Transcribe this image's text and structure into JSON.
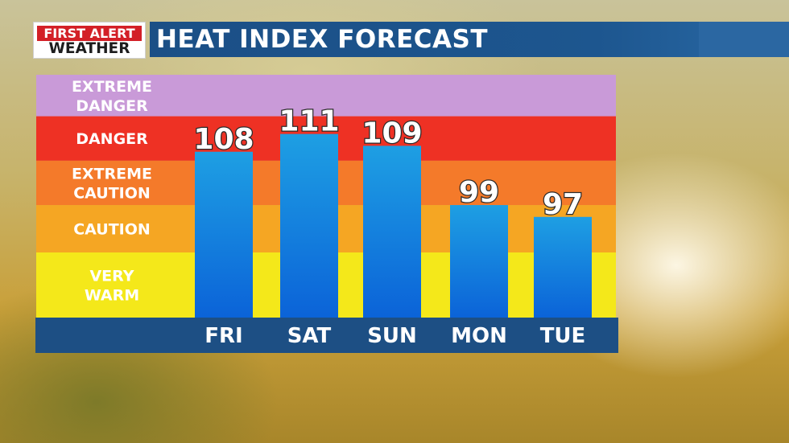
{
  "logo": {
    "line1": "FIRST ALERT",
    "line2": "WEATHER"
  },
  "header": {
    "title": "HEAT INDEX FORECAST"
  },
  "colors": {
    "header_blue": "#1b4f86",
    "axis_bar": "#1d4f84",
    "bar_top": "#1e9fe3",
    "bar_bottom": "#0b63d8"
  },
  "chart_data": {
    "type": "bar",
    "title": "HEAT INDEX FORECAST",
    "categories": [
      "FRI",
      "SAT",
      "SUN",
      "MON",
      "TUE"
    ],
    "values": [
      108,
      111,
      109,
      99,
      97
    ],
    "ylim": [
      80,
      120
    ],
    "bands": [
      {
        "label_lines": [
          "VERY",
          "WARM"
        ],
        "from": 80,
        "to": 91,
        "color": "#f4e81a"
      },
      {
        "label_lines": [
          "CAUTION"
        ],
        "from": 91,
        "to": 99,
        "color": "#f5a623"
      },
      {
        "label_lines": [
          "EXTREME",
          "CAUTION"
        ],
        "from": 99,
        "to": 106.5,
        "color": "#f47a2a"
      },
      {
        "label_lines": [
          "DANGER"
        ],
        "from": 106.5,
        "to": 114,
        "color": "#ee3124"
      },
      {
        "label_lines": [
          "EXTREME",
          "DANGER"
        ],
        "from": 114,
        "to": 121,
        "color": "#c99ad8"
      }
    ],
    "grid": false,
    "legend": "none"
  }
}
